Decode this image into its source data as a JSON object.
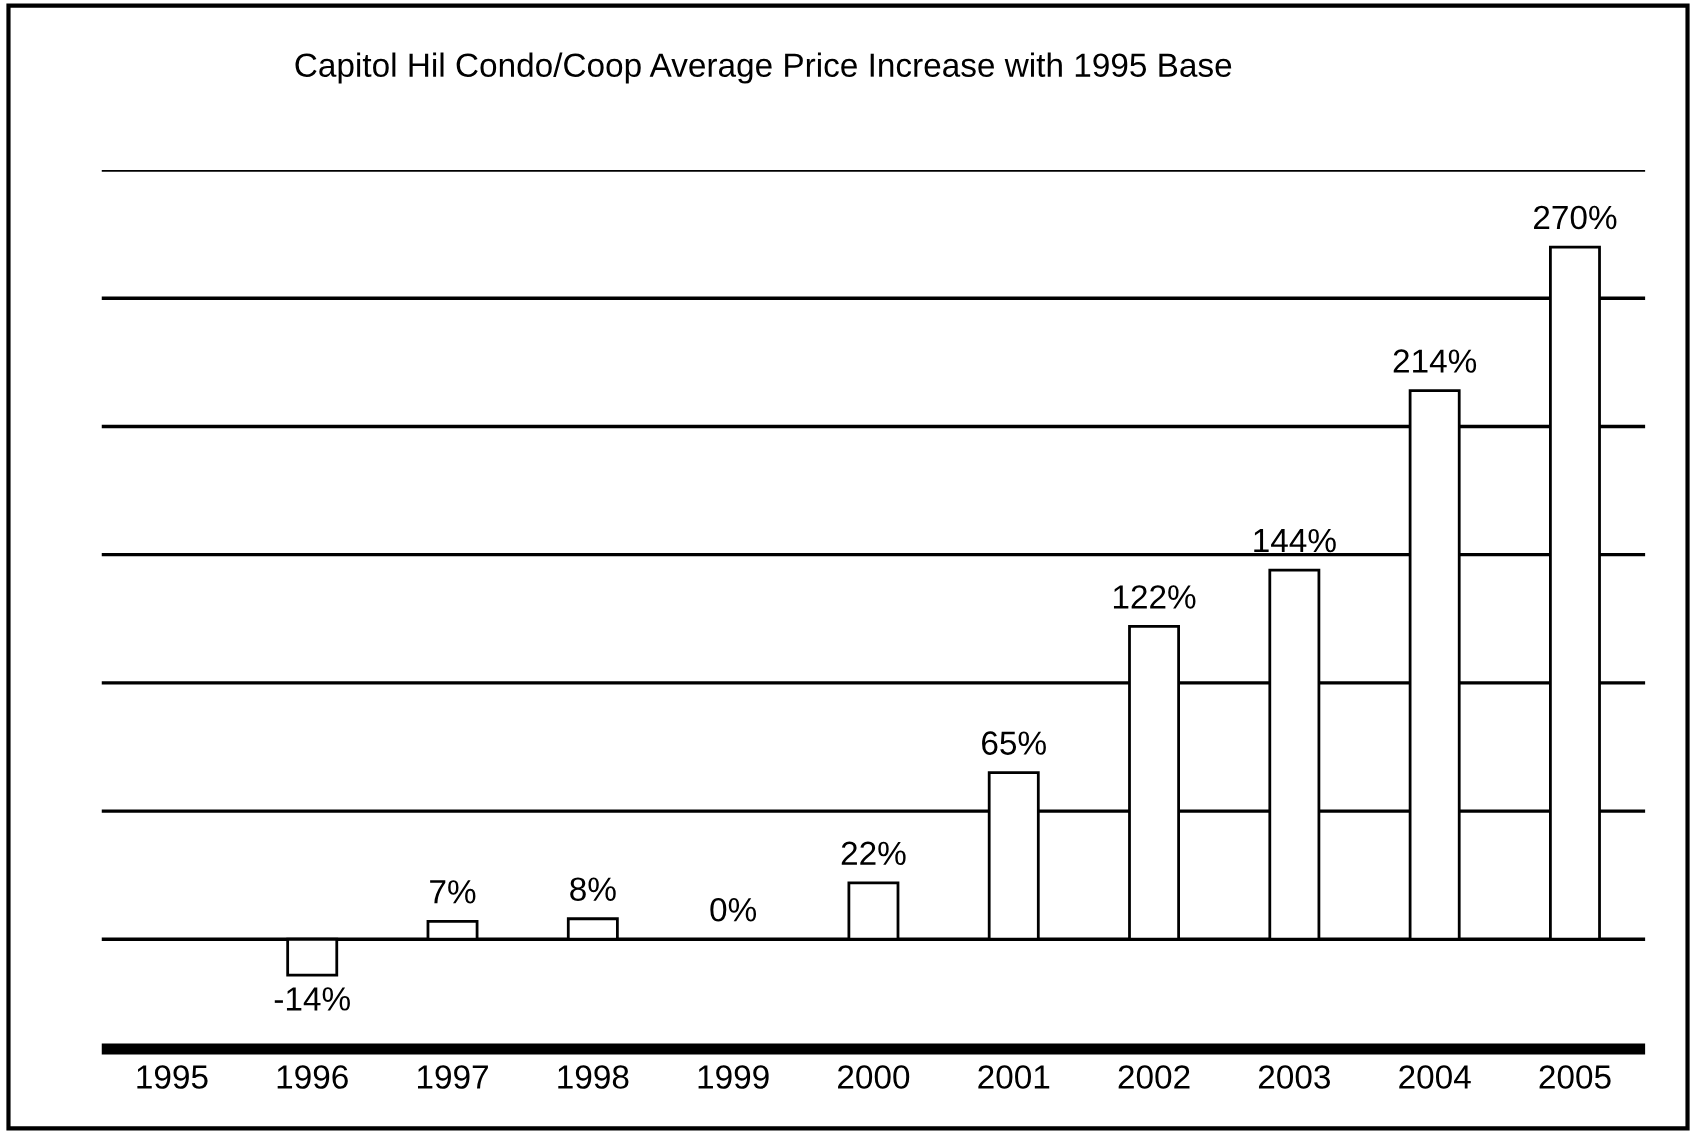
{
  "chart_data": {
    "type": "bar",
    "title": "Capitol Hil Condo/Coop Average Price Increase with 1995 Base",
    "categories": [
      "1995",
      "1996",
      "1997",
      "1998",
      "1999",
      "2000",
      "2001",
      "2002",
      "2003",
      "2004",
      "2005"
    ],
    "values": [
      null,
      -14,
      7,
      8,
      0,
      22,
      65,
      122,
      144,
      214,
      270
    ],
    "color": "#ffffff",
    "ylim": [
      -45,
      300
    ],
    "yticks": [
      {
        "value": 0,
        "label": null
      },
      {
        "value": 50,
        "label": null
      },
      {
        "value": 100,
        "label": null
      },
      {
        "value": 150,
        "label": null
      },
      {
        "value": 200,
        "label": null
      },
      {
        "value": 250,
        "label": null
      },
      {
        "value": 300,
        "label": null
      }
    ],
    "grid": "y",
    "tick_labels": "x",
    "value_labels": [
      null,
      "-14%",
      "7%",
      "8%",
      "0%",
      "22%",
      "65%",
      "122%",
      "144%",
      "214%",
      "270%"
    ]
  }
}
